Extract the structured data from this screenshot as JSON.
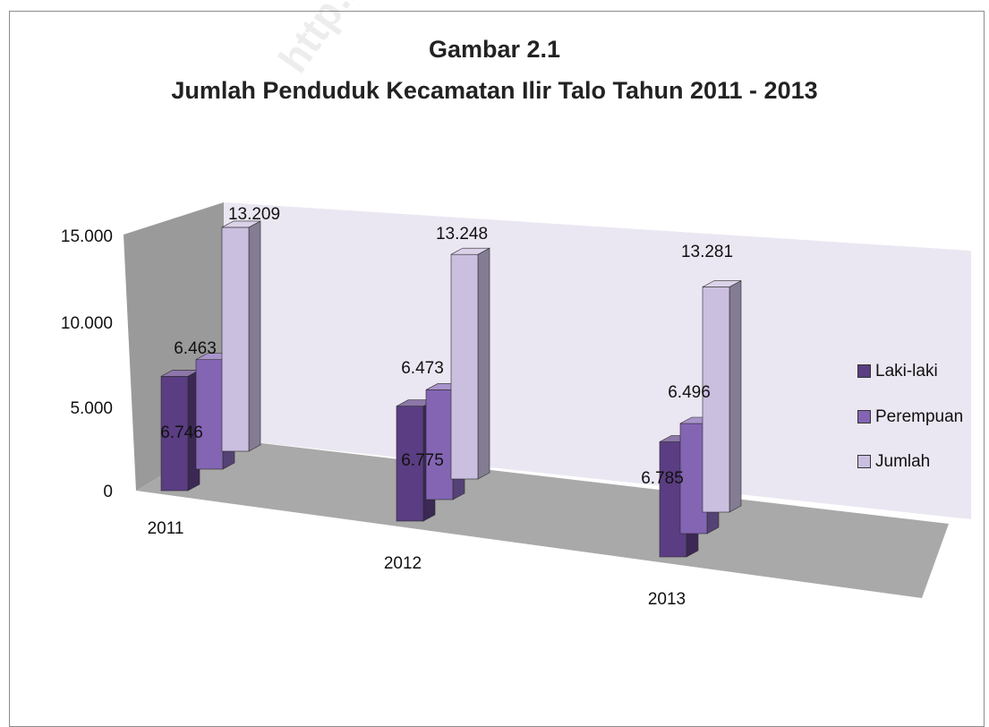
{
  "watermark": "http://se",
  "chart_data": {
    "type": "bar",
    "title": "Gambar 2.1",
    "subtitle": "Jumlah Penduduk Kecamatan Ilir Talo Tahun 2011 - 2013",
    "categories": [
      "2011",
      "2012",
      "2013"
    ],
    "series": [
      {
        "name": "Laki-laki",
        "color": "#5a3d82",
        "values": [
          6746,
          6775,
          6785
        ],
        "labels": [
          "6.746",
          "6.775",
          "6.785"
        ]
      },
      {
        "name": "Perempuan",
        "color": "#8365b4",
        "values": [
          6463,
          6473,
          6496
        ],
        "labels": [
          "6.463",
          "6.473",
          "6.496"
        ]
      },
      {
        "name": "Jumlah",
        "color": "#cbbfe0",
        "values": [
          13209,
          13248,
          13281
        ],
        "labels": [
          "13.209",
          "13.248",
          "13.281"
        ]
      }
    ],
    "y_ticks": [
      "0",
      "5.000",
      "10.000",
      "15.000"
    ],
    "ylim": [
      0,
      15000
    ],
    "legend_position": "right",
    "gridlines": false,
    "style": "3d-clustered-column"
  }
}
